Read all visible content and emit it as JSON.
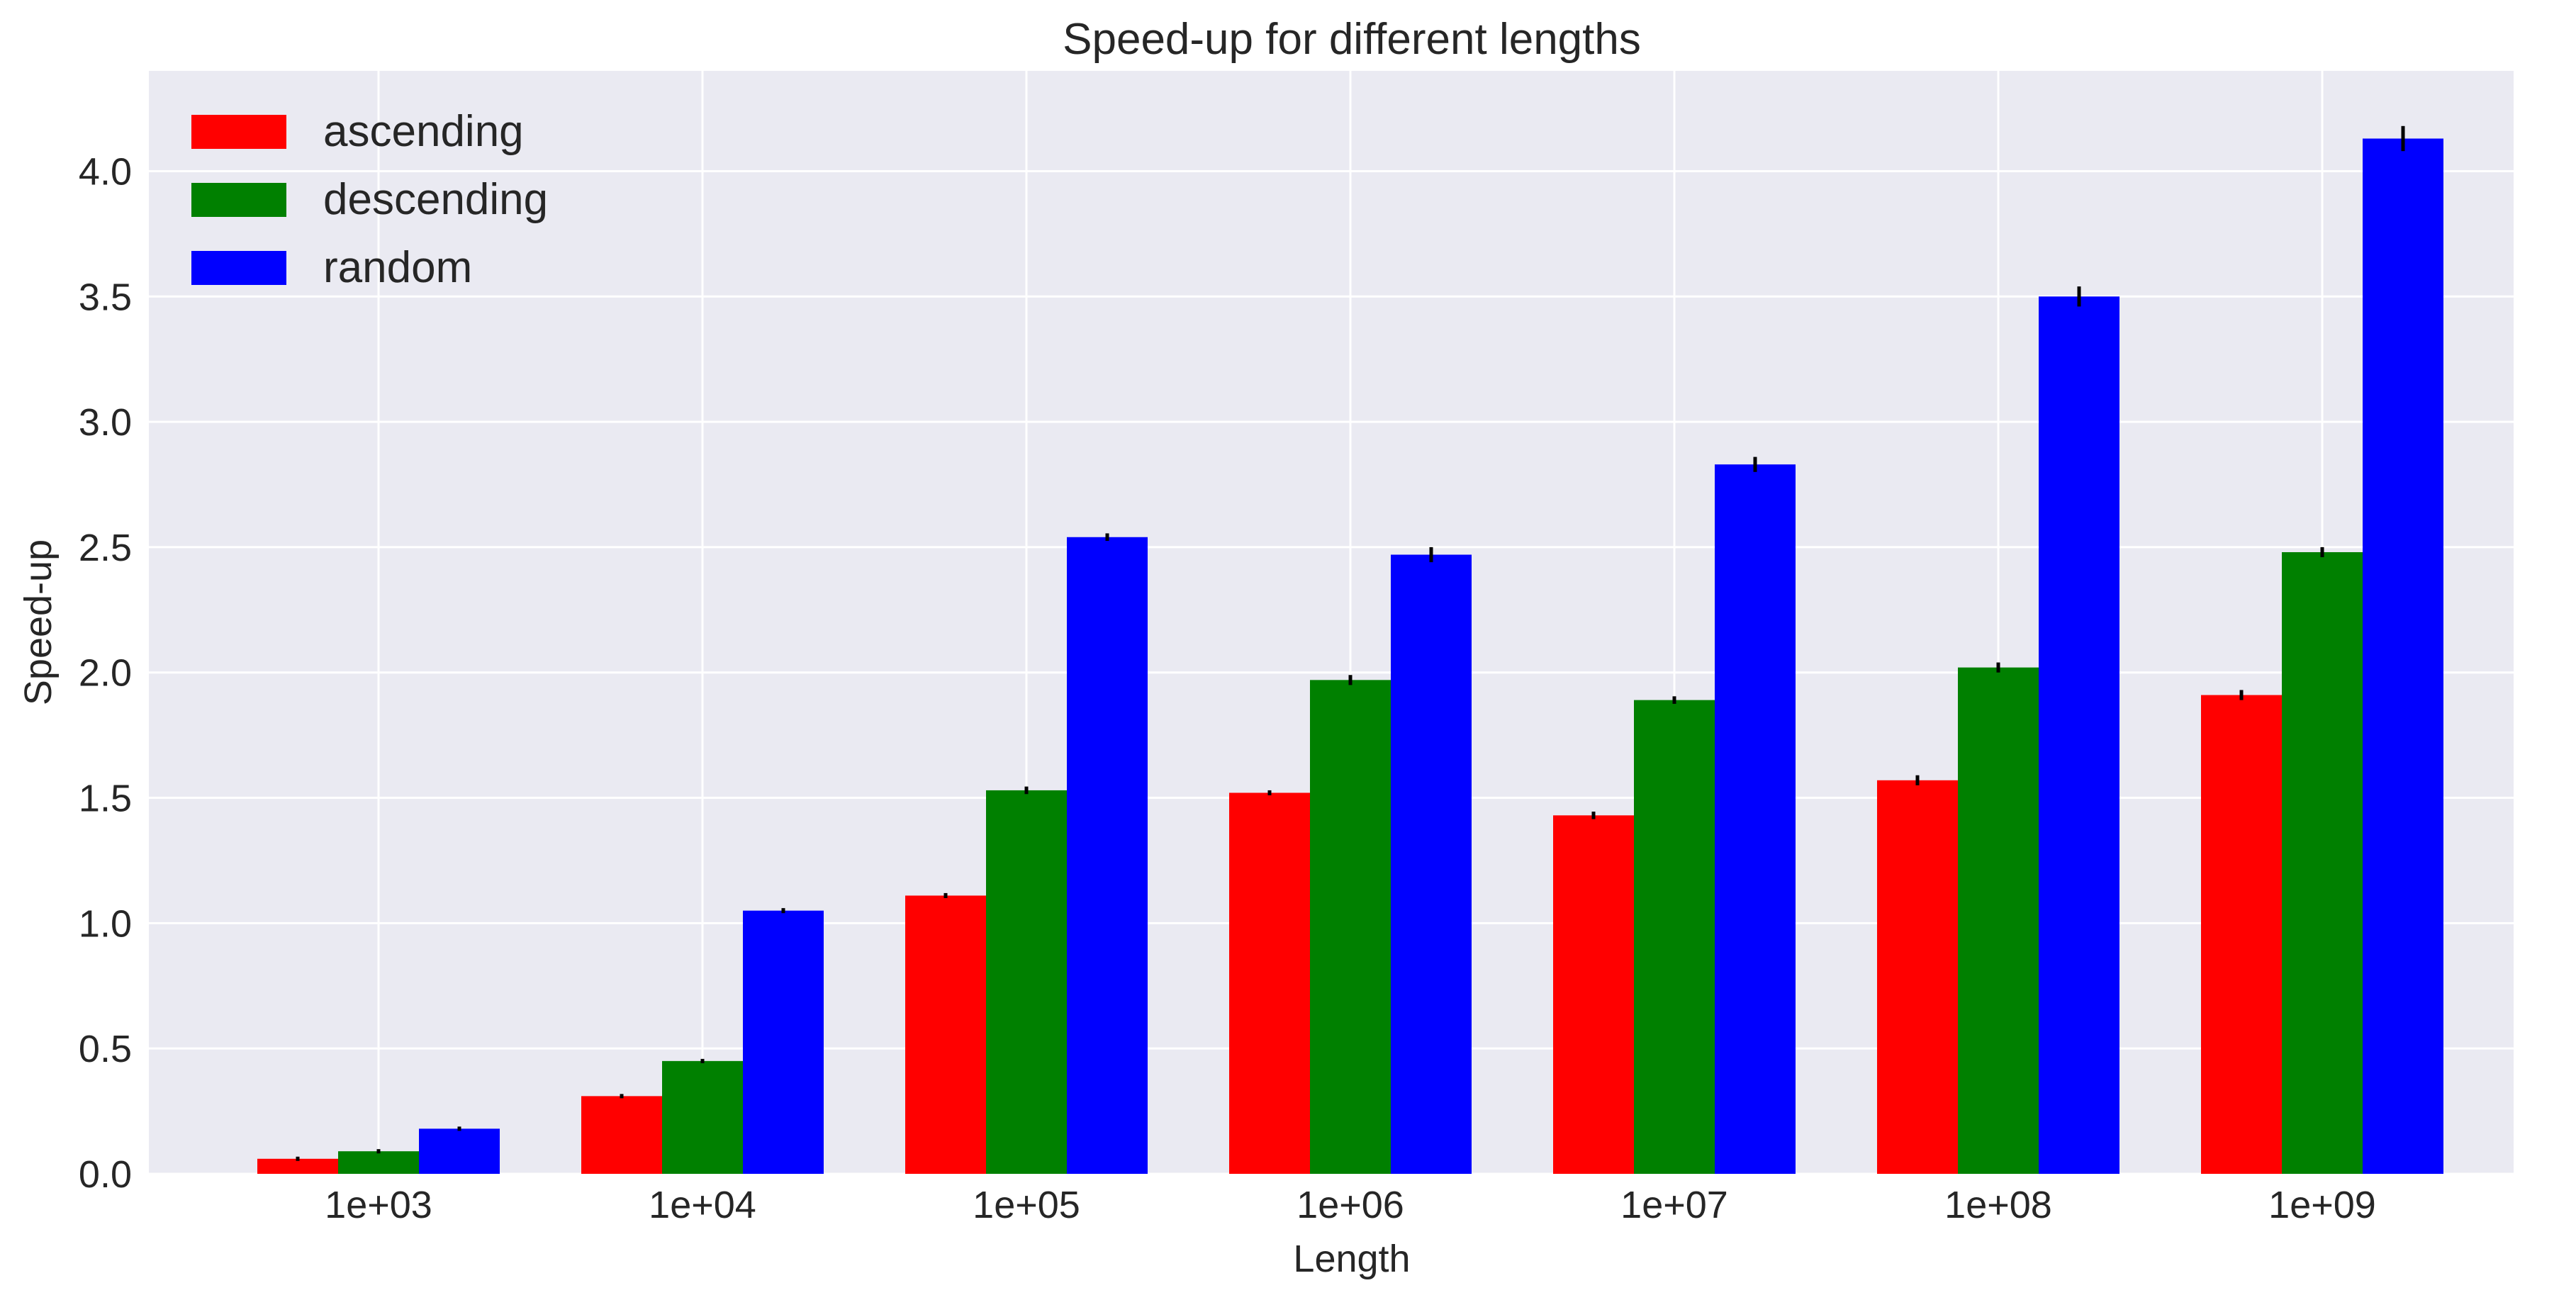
{
  "chart_data": {
    "type": "bar",
    "title": "Speed-up for different lengths",
    "xlabel": "Length",
    "ylabel": "Speed-up",
    "categories": [
      "1e+03",
      "1e+04",
      "1e+05",
      "1e+06",
      "1e+07",
      "1e+08",
      "1e+09"
    ],
    "series": [
      {
        "name": "ascending",
        "color": "#ff0000",
        "values": [
          0.06,
          0.31,
          1.11,
          1.52,
          1.43,
          1.57,
          1.91
        ],
        "errors": [
          0.004,
          0.005,
          0.01,
          0.01,
          0.015,
          0.02,
          0.02
        ]
      },
      {
        "name": "descending",
        "color": "#008000",
        "values": [
          0.09,
          0.45,
          1.53,
          1.97,
          1.89,
          2.02,
          2.48
        ],
        "errors": [
          0.004,
          0.005,
          0.015,
          0.02,
          0.015,
          0.02,
          0.02
        ]
      },
      {
        "name": "random",
        "color": "#0000ff",
        "values": [
          0.18,
          1.05,
          2.54,
          2.47,
          2.83,
          3.5,
          4.13
        ],
        "errors": [
          0.004,
          0.01,
          0.015,
          0.03,
          0.03,
          0.04,
          0.05
        ]
      }
    ],
    "ylim": [
      0,
      4.4
    ],
    "yticks": [
      "0.0",
      "0.5",
      "1.0",
      "1.5",
      "2.0",
      "2.5",
      "3.0",
      "3.5",
      "4.0"
    ],
    "grid": true,
    "legend_position": "top-left",
    "background": "#eaeaf2",
    "grid_color": "#ffffff"
  }
}
